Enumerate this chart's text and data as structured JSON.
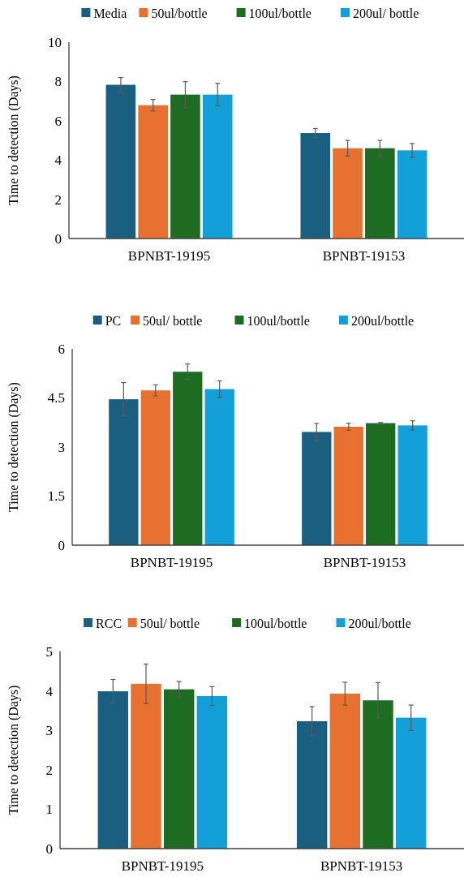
{
  "chart_data": [
    {
      "type": "bar",
      "ylabel": "Time to detection (Days)",
      "categories": [
        "BPNBT-19195",
        "BPNBT-19153"
      ],
      "ylim": [
        0,
        10
      ],
      "yticks": [
        0,
        2,
        4,
        6,
        8,
        10
      ],
      "legend": "top",
      "grid": false,
      "series": [
        {
          "name": "Media",
          "color": "#1a5e80",
          "values": [
            7.83,
            5.37
          ],
          "errors": [
            0.37,
            0.23
          ]
        },
        {
          "name": "50ul/bottle",
          "color": "#e87030",
          "values": [
            6.79,
            4.6
          ],
          "errors": [
            0.29,
            0.4
          ]
        },
        {
          "name": "100ul/bottle",
          "color": "#1e6b22",
          "values": [
            7.33,
            4.6
          ],
          "errors": [
            0.66,
            0.4
          ]
        },
        {
          "name": "200ul/ bottle",
          "color": "#139fd8",
          "values": [
            7.33,
            4.49
          ],
          "errors": [
            0.57,
            0.35
          ]
        }
      ]
    },
    {
      "type": "bar",
      "ylabel": "Time to detection (Days)",
      "categories": [
        "BPNBT-19195",
        "BPNBT-19153"
      ],
      "ylim": [
        0,
        6
      ],
      "yticks": [
        0,
        1.5,
        3,
        4.5,
        6
      ],
      "legend": "top",
      "grid": false,
      "series": [
        {
          "name": "PC",
          "color": "#1a5e80",
          "values": [
            4.46,
            3.46
          ],
          "errors": [
            0.51,
            0.26
          ]
        },
        {
          "name": "50ul/ bottle",
          "color": "#e87030",
          "values": [
            4.73,
            3.62
          ],
          "errors": [
            0.17,
            0.11
          ]
        },
        {
          "name": "100ul/bottle",
          "color": "#1e6b22",
          "values": [
            5.3,
            3.73
          ],
          "errors": [
            0.24,
            0.02
          ]
        },
        {
          "name": "200ul/bottle",
          "color": "#139fd8",
          "values": [
            4.77,
            3.66
          ],
          "errors": [
            0.25,
            0.14
          ]
        }
      ]
    },
    {
      "type": "bar",
      "ylabel": "Time to detection (Days)",
      "categories": [
        "BPNBT-19195",
        "BPNBT-19153"
      ],
      "ylim": [
        0,
        5
      ],
      "yticks": [
        0,
        1,
        2,
        3,
        4,
        5
      ],
      "legend": "top",
      "grid": false,
      "series": [
        {
          "name": "RCC",
          "color": "#1a5e80",
          "values": [
            3.99,
            3.23
          ],
          "errors": [
            0.3,
            0.37
          ]
        },
        {
          "name": "50ul/ bottle",
          "color": "#e87030",
          "values": [
            4.18,
            3.93
          ],
          "errors": [
            0.5,
            0.29
          ]
        },
        {
          "name": "100ul/bottle",
          "color": "#1e6b22",
          "values": [
            4.04,
            3.76
          ],
          "errors": [
            0.2,
            0.45
          ]
        },
        {
          "name": "200ul/bottle",
          "color": "#139fd8",
          "values": [
            3.87,
            3.32
          ],
          "errors": [
            0.24,
            0.32
          ]
        }
      ]
    }
  ]
}
